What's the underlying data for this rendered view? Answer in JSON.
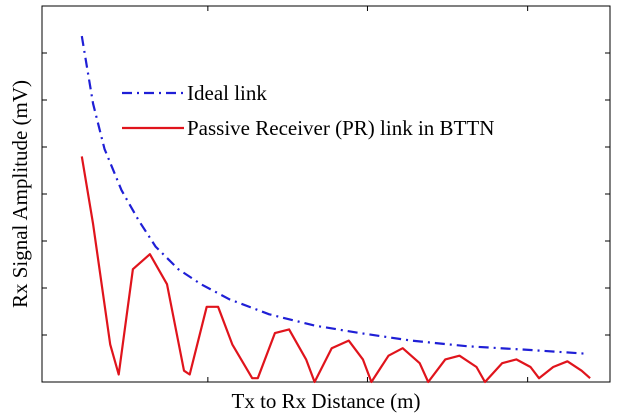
{
  "chart_data": {
    "type": "line",
    "title": "",
    "xlabel": "Tx to Rx Distance (m)",
    "ylabel": "Rx Signal Amplitude (mV)",
    "xlim": [
      0,
      1.0
    ],
    "ylim": [
      0,
      1.0
    ],
    "x_tick_labels": false,
    "y_tick_labels": false,
    "grid": false,
    "legend_position": "upper-middle",
    "series": [
      {
        "name": "Ideal link",
        "style": "dash-dot",
        "color": "#1f1fd6",
        "x": [
          0.07,
          0.09,
          0.11,
          0.14,
          0.17,
          0.2,
          0.24,
          0.28,
          0.33,
          0.4,
          0.48,
          0.56,
          0.65,
          0.75,
          0.86,
          0.96
        ],
        "y": [
          0.92,
          0.74,
          0.62,
          0.51,
          0.43,
          0.36,
          0.3,
          0.26,
          0.22,
          0.18,
          0.15,
          0.13,
          0.11,
          0.095,
          0.085,
          0.075
        ]
      },
      {
        "name": "Passive Receiver (PR) link in BTTN",
        "style": "solid",
        "color": "#e0141c",
        "x": [
          0.07,
          0.09,
          0.12,
          0.135,
          0.16,
          0.19,
          0.22,
          0.25,
          0.26,
          0.29,
          0.31,
          0.335,
          0.37,
          0.38,
          0.41,
          0.435,
          0.465,
          0.48,
          0.51,
          0.54,
          0.565,
          0.58,
          0.61,
          0.635,
          0.665,
          0.68,
          0.71,
          0.735,
          0.765,
          0.78,
          0.81,
          0.835,
          0.86,
          0.875,
          0.9,
          0.925,
          0.95,
          0.965
        ],
        "y": [
          0.6,
          0.42,
          0.1,
          0.02,
          0.3,
          0.34,
          0.26,
          0.03,
          0.02,
          0.2,
          0.2,
          0.1,
          0.01,
          0.01,
          0.13,
          0.14,
          0.06,
          0.0,
          0.09,
          0.11,
          0.06,
          0.0,
          0.07,
          0.09,
          0.05,
          0.0,
          0.06,
          0.07,
          0.04,
          0.0,
          0.05,
          0.06,
          0.04,
          0.01,
          0.04,
          0.055,
          0.03,
          0.01
        ]
      }
    ]
  }
}
